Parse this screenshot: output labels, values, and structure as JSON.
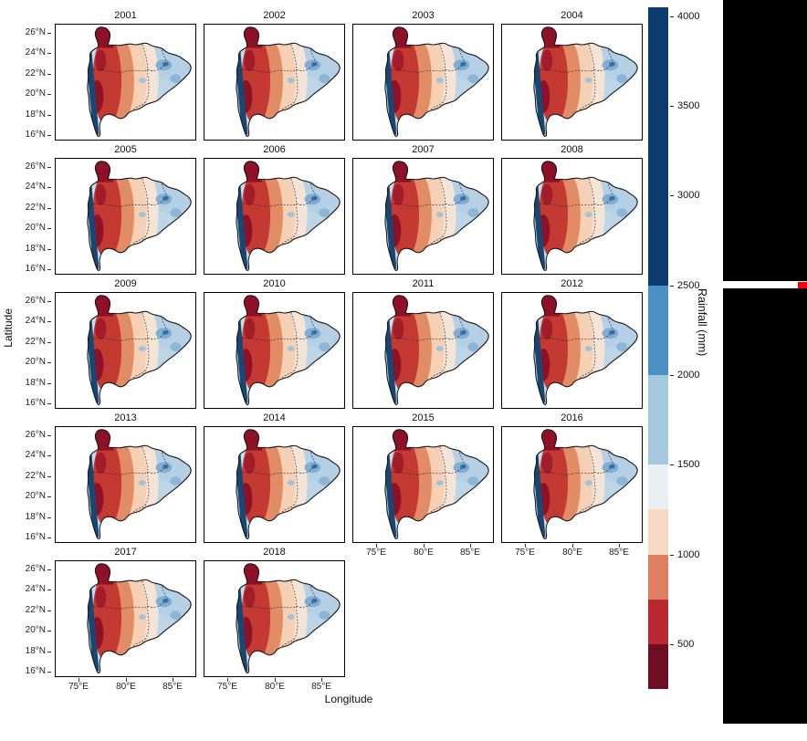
{
  "chart_data": {
    "type": "heatmap",
    "description": "Small-multiple annual gridded rainfall maps over central India, one facet per year, with a shared discrete red-blue colorbar",
    "facet_years": [
      "2001",
      "2002",
      "2003",
      "2004",
      "2005",
      "2006",
      "2007",
      "2008",
      "2009",
      "2010",
      "2011",
      "2012",
      "2013",
      "2014",
      "2015",
      "2016",
      "2017",
      "2018"
    ],
    "xlabel": "Longitude",
    "ylabel": "Latitude",
    "x_ticks": [
      "75°E",
      "80°E",
      "85°E"
    ],
    "y_ticks": [
      "26°N",
      "24°N",
      "22°N",
      "20°N",
      "18°N",
      "16°N"
    ],
    "x_range_deg_e": [
      73,
      87
    ],
    "y_range_deg_n": [
      16,
      26.5
    ],
    "legend_position": "right",
    "grid": false,
    "colorbar": {
      "title": "Rainfall (mm)",
      "ticks": [
        "4000",
        "3500",
        "3000",
        "2500",
        "2000",
        "1500",
        "1000",
        "500"
      ],
      "tick_values": [
        4000,
        3500,
        3000,
        2500,
        2000,
        1500,
        1000,
        500
      ],
      "bands": [
        {
          "lo": 2500,
          "hi": 4050,
          "color": "#0c3c6e"
        },
        {
          "lo": 2000,
          "hi": 2500,
          "color": "#4a90c2"
        },
        {
          "lo": 1500,
          "hi": 2000,
          "color": "#a4c9de"
        },
        {
          "lo": 1250,
          "hi": 1500,
          "color": "#e9eff3"
        },
        {
          "lo": 1000,
          "hi": 1250,
          "color": "#f8d9c3"
        },
        {
          "lo": 750,
          "hi": 1000,
          "color": "#df7f5f"
        },
        {
          "lo": 500,
          "hi": 750,
          "color": "#ba2832"
        },
        {
          "lo": 250,
          "hi": 500,
          "color": "#6e0e25"
        }
      ]
    },
    "map_colors": {
      "coastal_very_wet": "#174772",
      "east_wet": "#b5d0e4",
      "transition": "#f6d0b4",
      "west_dry": "#c43931",
      "driest": "#8e1127"
    }
  },
  "artifacts": {
    "black_panel_color": "#000000",
    "red_marker_color": "#fb0006"
  }
}
